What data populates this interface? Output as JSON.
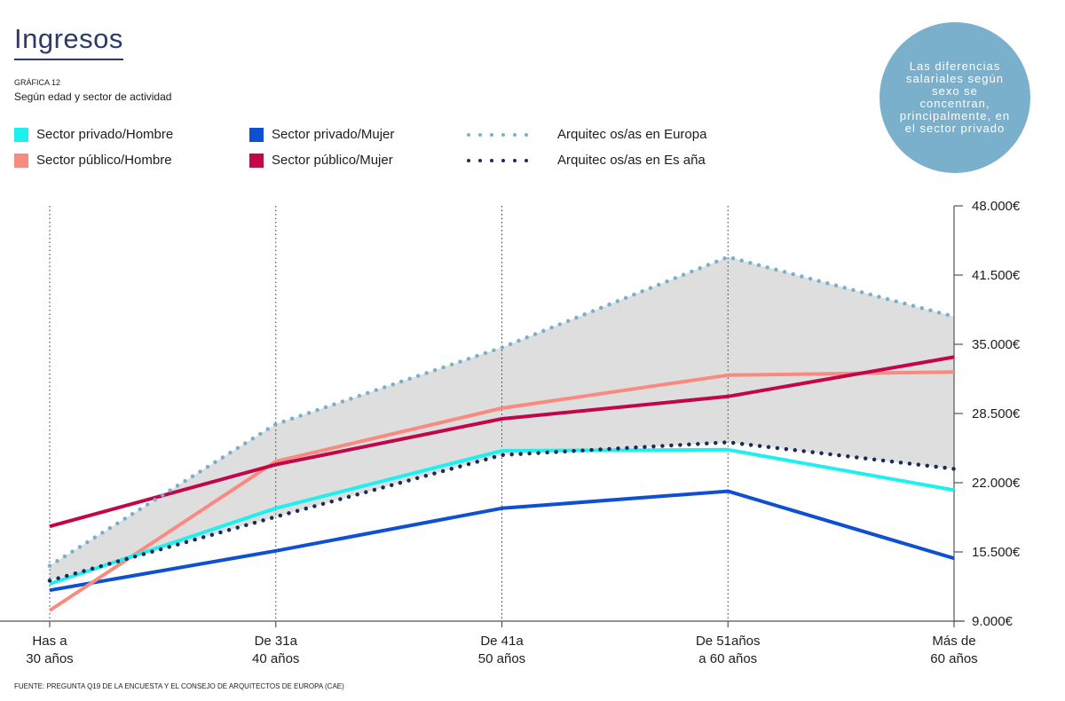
{
  "header": {
    "title": "Ingresos",
    "chart_label": "GRÁFICA 12",
    "subtitle": "Según edad y sector de actividad"
  },
  "callout": {
    "text": "Las diferencias salariales según sexo se concentran, principalmente, en el sector privado"
  },
  "source": "FUENTE: PREGUNTA Q19 DE LA ENCUESTA Y EL CONSEJO DE ARQUITECTOS DE EUROPA (CAE)",
  "legend": [
    {
      "label": "Sector privado/Hombre",
      "style": "swatch",
      "color": "#1ef0ef"
    },
    {
      "label": "Sector público/Hombre",
      "style": "swatch",
      "color": "#f88a80"
    },
    {
      "label": "Sector privado/Mujer",
      "style": "swatch",
      "color": "#0f50d2"
    },
    {
      "label": "Sector público/Mujer",
      "style": "swatch",
      "color": "#c2064a"
    },
    {
      "label": "Arquitec os/as en Europa",
      "style": "dots",
      "color": "#7ab0cb"
    },
    {
      "label": "Arquitec os/as en Es  aña",
      "style": "dots",
      "color": "#1c2a5a"
    }
  ],
  "chart_data": {
    "type": "line",
    "categories": [
      [
        "Has  a",
        "30 años"
      ],
      [
        "De 31a",
        "40 años"
      ],
      [
        "De 41a",
        "50 años"
      ],
      [
        "De 51años",
        "a 60 años"
      ],
      [
        "Más de",
        "60 años"
      ]
    ],
    "y_ticks": [
      "48.000€",
      "41.500€",
      "35.000€",
      "28.500€",
      "22.000€",
      "15.500€",
      "9.000€"
    ],
    "ylim": [
      9000,
      48000
    ],
    "grid": "vertical dotted lines at each category",
    "series": [
      {
        "name": "Sector privado/Hombre",
        "color": "#1ef0ef",
        "style": "solid",
        "values": [
          12500,
          19600,
          25000,
          25100,
          21300
        ]
      },
      {
        "name": "Sector público/Hombre",
        "color": "#f88a80",
        "style": "solid",
        "values": [
          10000,
          24000,
          29000,
          32100,
          32400
        ]
      },
      {
        "name": "Sector privado/Mujer",
        "color": "#0f50d2",
        "style": "solid",
        "values": [
          11900,
          15600,
          19600,
          21200,
          14900
        ]
      },
      {
        "name": "Sector público/Mujer",
        "color": "#c2064a",
        "style": "solid",
        "values": [
          17900,
          23700,
          28000,
          30100,
          33800
        ]
      },
      {
        "name": "Arquitec os/as en Europa",
        "color": "#7ab0cb",
        "style": "dotted",
        "values": [
          14200,
          27500,
          34700,
          43200,
          37600
        ]
      },
      {
        "name": "Arquitec os/as en Es  aña",
        "color": "#1c2a5a",
        "style": "dotted",
        "values": [
          12800,
          18800,
          24600,
          25800,
          23300
        ]
      }
    ],
    "shaded_band": {
      "between": [
        "Arquitec os/as en Europa",
        "Arquitec os/as en Es  aña"
      ],
      "color": "#dedede"
    }
  }
}
